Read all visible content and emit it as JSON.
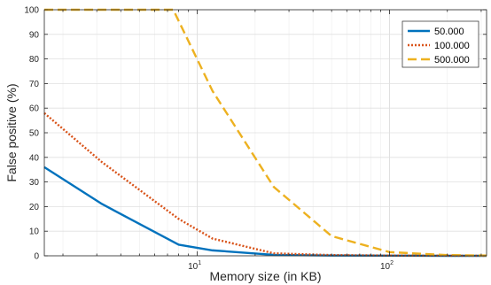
{
  "chart_data": {
    "type": "line",
    "title": "",
    "xlabel": "Memory size (in KB)",
    "ylabel": "False positive (%)",
    "xscale": "log",
    "xlim": [
      1.6,
      320
    ],
    "ylim": [
      0,
      100
    ],
    "yticks": [
      0,
      10,
      20,
      30,
      40,
      50,
      60,
      70,
      80,
      90,
      100
    ],
    "xticks": [
      {
        "value": 10,
        "base": "10",
        "exp": "1"
      },
      {
        "value": 100,
        "base": "10",
        "exp": "2"
      }
    ],
    "grid": true,
    "legend_position": "top-right",
    "series": [
      {
        "name": "50.000",
        "color": "#0072BD",
        "dash": "solid",
        "x": [
          1.6,
          3.2,
          8,
          12,
          25,
          50,
          100,
          200,
          320
        ],
        "y": [
          36,
          21,
          4.5,
          2.2,
          0.4,
          0.1,
          0.05,
          0,
          0
        ]
      },
      {
        "name": "100.000",
        "color": "#D95319",
        "dash": "dotted",
        "x": [
          1.6,
          3.2,
          8,
          12,
          25,
          50,
          100,
          200,
          320
        ],
        "y": [
          58,
          38,
          15,
          7,
          1,
          0.3,
          0.1,
          0.05,
          0
        ]
      },
      {
        "name": "500.000",
        "color": "#EDB120",
        "dash": "dashed",
        "x": [
          1.6,
          4,
          7.5,
          12,
          25,
          50,
          100,
          200,
          320
        ],
        "y": [
          100,
          100,
          100,
          67,
          28,
          8,
          1.5,
          0.3,
          0.1
        ]
      }
    ]
  }
}
